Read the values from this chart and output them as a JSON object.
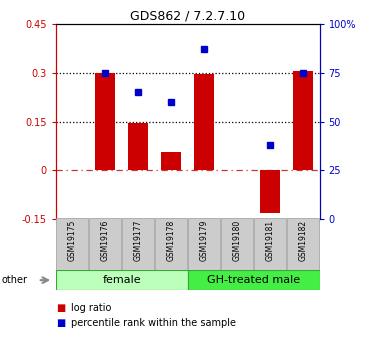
{
  "title": "GDS862 / 7.2.7.10",
  "samples": [
    "GSM19175",
    "GSM19176",
    "GSM19177",
    "GSM19178",
    "GSM19179",
    "GSM19180",
    "GSM19181",
    "GSM19182"
  ],
  "log_ratio": [
    0.0,
    0.3,
    0.145,
    0.055,
    0.298,
    0.0,
    -0.13,
    0.305
  ],
  "percentile_rank": [
    null,
    75,
    65,
    60,
    87,
    null,
    38,
    75
  ],
  "groups": [
    {
      "label": "female",
      "indices": [
        0,
        1,
        2,
        3
      ],
      "color": "#bbffbb"
    },
    {
      "label": "GH-treated male",
      "indices": [
        4,
        5,
        6,
        7
      ],
      "color": "#44ee44"
    }
  ],
  "ylim_left": [
    -0.15,
    0.45
  ],
  "ylim_right": [
    0,
    100
  ],
  "yticks_left": [
    -0.15,
    0.0,
    0.15,
    0.3,
    0.45
  ],
  "yticks_right": [
    0,
    25,
    50,
    75,
    100
  ],
  "ytick_labels_left": [
    "-0.15",
    "0",
    "0.15",
    "0.3",
    "0.45"
  ],
  "ytick_labels_right": [
    "0",
    "25",
    "50",
    "75",
    "100%"
  ],
  "hlines_dotted": [
    0.15,
    0.3
  ],
  "hline_dashed": 0.0,
  "bar_color": "#cc0000",
  "dot_color": "#0000cc",
  "bar_width": 0.6,
  "other_label": "other",
  "legend_bar_label": "log ratio",
  "legend_dot_label": "percentile rank within the sample",
  "left_axis_color": "#cc0000",
  "right_axis_color": "#0000cc",
  "sample_box_color": "#cccccc",
  "title_fontsize": 9,
  "tick_fontsize": 7,
  "sample_fontsize": 5.5,
  "group_fontsize": 8,
  "legend_fontsize": 7,
  "other_fontsize": 7
}
